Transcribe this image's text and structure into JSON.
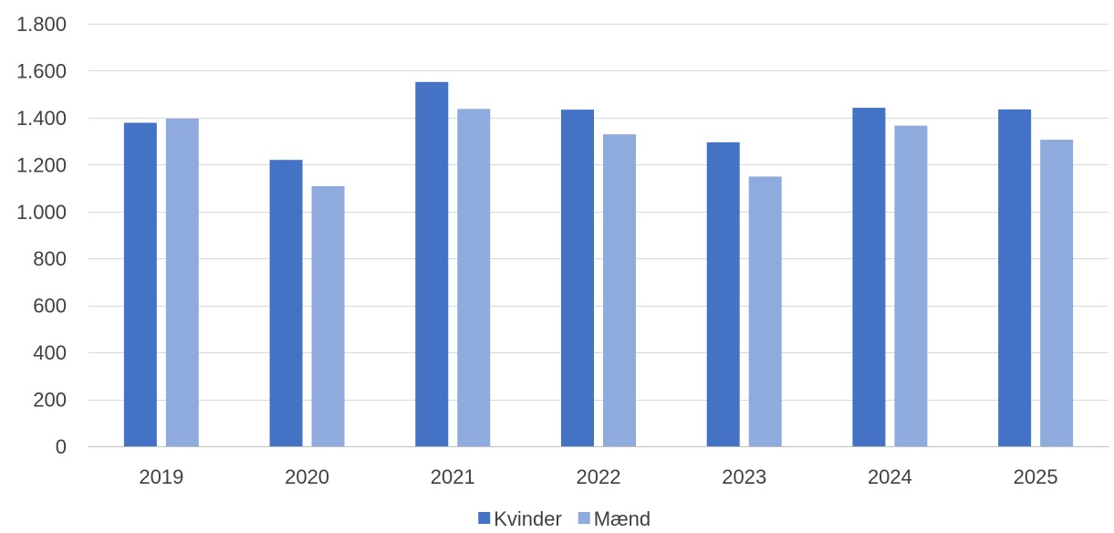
{
  "chart_data": {
    "type": "bar",
    "title": "",
    "xlabel": "",
    "ylabel": "",
    "categories": [
      "2019",
      "2020",
      "2021",
      "2022",
      "2023",
      "2024",
      "2025"
    ],
    "series": [
      {
        "name": "Kvinder",
        "color": "#4472C4",
        "values": [
          1378,
          1220,
          1552,
          1434,
          1295,
          1442,
          1435
        ]
      },
      {
        "name": "Mænd",
        "color": "#8FAADC",
        "values": [
          1396,
          1108,
          1437,
          1329,
          1149,
          1366,
          1306
        ]
      }
    ],
    "ylim": [
      0,
      1800
    ],
    "yticks": [
      0,
      200,
      400,
      600,
      800,
      1000,
      1200,
      1400,
      1600,
      1800
    ],
    "ytick_labels": [
      "0",
      "200",
      "400",
      "600",
      "800",
      "1.000",
      "1.200",
      "1.400",
      "1.600",
      "1.800"
    ],
    "grid": true,
    "legend_position": "bottom-center"
  }
}
